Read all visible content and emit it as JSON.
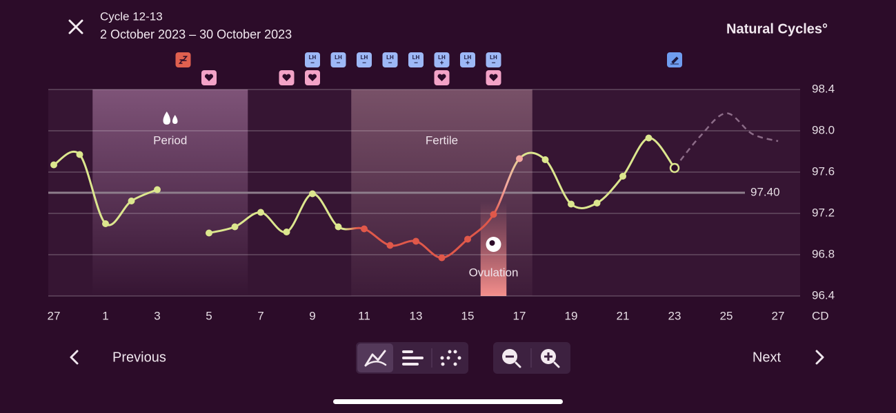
{
  "header": {
    "title": "Cycle 12-13",
    "subtitle": "2 October 2023 – 30 October 2023",
    "brand": "Natural Cycles°"
  },
  "chart_data": {
    "type": "line",
    "categories": [
      "27",
      null,
      "1",
      null,
      "3",
      null,
      "5",
      null,
      "7",
      null,
      "9",
      null,
      "11",
      null,
      "13",
      null,
      "15",
      null,
      "17",
      null,
      "19",
      null,
      "21",
      null,
      "23",
      null,
      "25",
      null,
      "27"
    ],
    "x_unit_label": "CD",
    "values": [
      97.67,
      97.77,
      97.1,
      97.32,
      97.43,
      null,
      97.01,
      97.07,
      97.21,
      97.02,
      97.39,
      97.07,
      97.05,
      96.89,
      96.93,
      96.77,
      96.95,
      97.19,
      97.73,
      97.72,
      97.29,
      97.3,
      97.56,
      97.93,
      97.64,
      null,
      null,
      null,
      null
    ],
    "predicted_values": [
      null,
      null,
      null,
      null,
      null,
      null,
      null,
      null,
      null,
      null,
      null,
      null,
      null,
      null,
      null,
      null,
      null,
      null,
      null,
      null,
      null,
      null,
      null,
      null,
      97.64,
      97.95,
      98.17,
      97.97,
      97.9
    ],
    "color": "#dce68e",
    "fertile_color": "#e0584a",
    "post_ovulation_color": "#f5a8a0",
    "predicted_color": "#8c6c88",
    "ylim": [
      96.4,
      98.4
    ],
    "yticks": [
      96.4,
      96.8,
      97.2,
      97.6,
      {
        "value": 98,
        "label": "98.0"
      },
      98.4
    ],
    "grid": true,
    "reference_line": {
      "value": 97.4,
      "label": "97.40"
    },
    "bands": [
      {
        "label": "Period",
        "from": 2,
        "to": 7
      },
      {
        "label": "Fertile",
        "from": 12,
        "to": 18
      },
      {
        "label": "Ovulation",
        "from": 17,
        "to": 17
      }
    ],
    "events": [
      {
        "index": 5,
        "kind": "sleep"
      },
      {
        "index": 10,
        "kind": "lh",
        "label": "LH",
        "result": "−"
      },
      {
        "index": 11,
        "kind": "lh",
        "label": "LH",
        "result": "−"
      },
      {
        "index": 12,
        "kind": "lh",
        "label": "LH",
        "result": "−"
      },
      {
        "index": 13,
        "kind": "lh",
        "label": "LH",
        "result": "−"
      },
      {
        "index": 14,
        "kind": "lh",
        "label": "LH",
        "result": "−"
      },
      {
        "index": 15,
        "kind": "lh",
        "label": "LH",
        "result": "+"
      },
      {
        "index": 16,
        "kind": "lh",
        "label": "LH",
        "result": "+"
      },
      {
        "index": 17,
        "kind": "lh",
        "label": "LH",
        "result": "−"
      },
      {
        "index": 24,
        "kind": "note"
      },
      {
        "index": 6,
        "kind": "heart"
      },
      {
        "index": 9,
        "kind": "heart"
      },
      {
        "index": 10,
        "kind": "heart"
      },
      {
        "index": 15,
        "kind": "heart"
      },
      {
        "index": 17,
        "kind": "heart"
      }
    ]
  },
  "navigation": {
    "previous": "Previous",
    "next": "Next"
  }
}
